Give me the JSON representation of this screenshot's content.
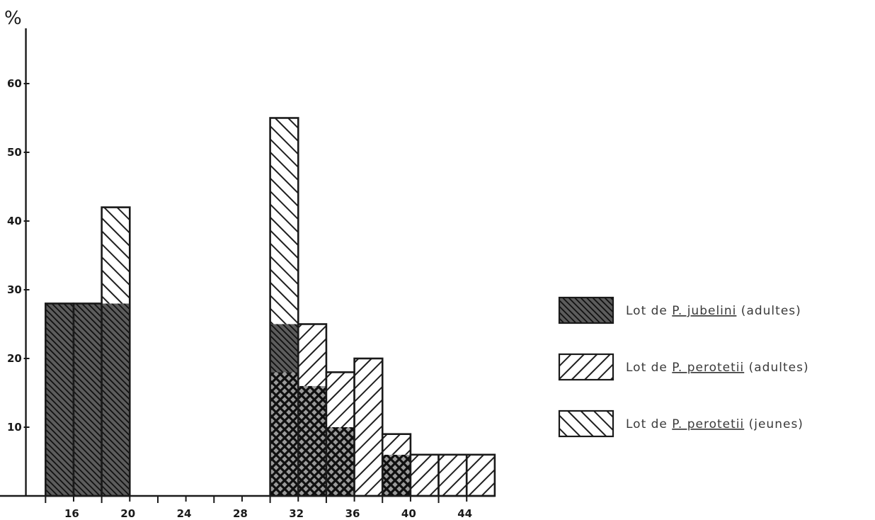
{
  "chart_data": {
    "type": "bar",
    "title": "",
    "xlabel": "",
    "ylabel": "%",
    "xlim": [
      10,
      46
    ],
    "ylim": [
      0,
      65
    ],
    "x_ticks": [
      16,
      20,
      24,
      28,
      32,
      36,
      40,
      44
    ],
    "y_ticks": [
      10,
      20,
      30,
      40,
      50,
      60
    ],
    "x_minor_ticks": [
      14,
      18,
      22,
      26,
      30,
      34,
      38,
      42
    ],
    "grid": false,
    "legend_position": "right",
    "bin_width": 2,
    "series": [
      {
        "legend": {
          "prefix": "Lot  de  ",
          "species": "P. jubelini",
          "suffix": " (adultes)"
        },
        "pattern": "dense",
        "bars": [
          {
            "x": 15,
            "value": 28
          },
          {
            "x": 17,
            "value": 28
          },
          {
            "x": 19,
            "value": 28
          },
          {
            "x": 31,
            "value": 25
          },
          {
            "x": 33,
            "value": 16
          },
          {
            "x": 35,
            "value": 10
          },
          {
            "x": 39,
            "value": 6
          }
        ]
      },
      {
        "legend": {
          "prefix": "Lot  de  ",
          "species": "P. perotetii",
          "suffix": " (adultes)"
        },
        "pattern": "backslash",
        "bars": [
          {
            "x": 31,
            "value": 18
          },
          {
            "x": 33,
            "value": 25
          },
          {
            "x": 35,
            "value": 18
          },
          {
            "x": 37,
            "value": 20
          },
          {
            "x": 39,
            "value": 9
          },
          {
            "x": 41,
            "value": 6
          },
          {
            "x": 43,
            "value": 6
          },
          {
            "x": 45,
            "value": 6
          }
        ]
      },
      {
        "legend": {
          "prefix": "Lot  de  ",
          "species": "P. perotetii",
          "suffix": " (jeunes)"
        },
        "pattern": "slash",
        "bars": [
          {
            "x": 19,
            "value": 42
          },
          {
            "x": 31,
            "value": 55
          },
          {
            "x": 33,
            "value": 18
          },
          {
            "x": 35,
            "value": 10
          }
        ]
      }
    ]
  }
}
